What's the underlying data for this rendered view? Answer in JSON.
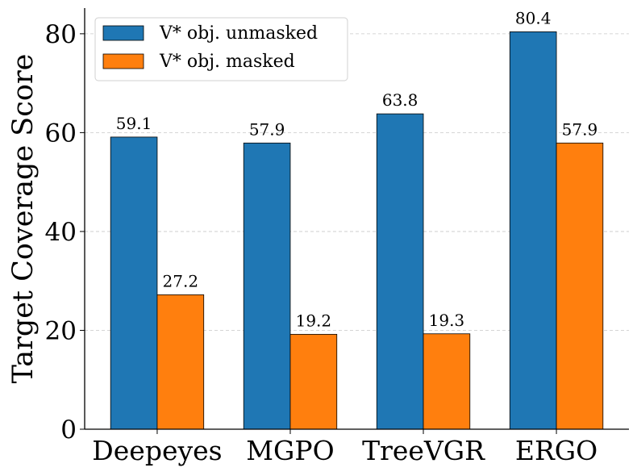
{
  "chart_data": {
    "type": "bar",
    "title": "",
    "xlabel": "",
    "ylabel": "Target Coverage Score",
    "categories": [
      "Deepeyes",
      "MGPO",
      "TreeVGR",
      "ERGO"
    ],
    "series": [
      {
        "name": "V* obj. unmasked",
        "values": [
          59.1,
          57.9,
          63.8,
          80.4
        ],
        "color": "#1f77b4"
      },
      {
        "name": "V* obj. masked",
        "values": [
          27.2,
          19.2,
          19.3,
          57.9
        ],
        "color": "#ff7f0e"
      }
    ],
    "data_labels": [
      [
        "59.1",
        "57.9",
        "63.8",
        "80.4"
      ],
      [
        "27.2",
        "19.2",
        "19.3",
        "57.9"
      ]
    ],
    "ylim": [
      0,
      85.2
    ],
    "yticks": [
      0,
      20,
      40,
      60,
      80
    ],
    "ytick_labels": [
      "0",
      "20",
      "40",
      "60",
      "80"
    ],
    "grid": "y-dashed",
    "legend": "top-left"
  }
}
